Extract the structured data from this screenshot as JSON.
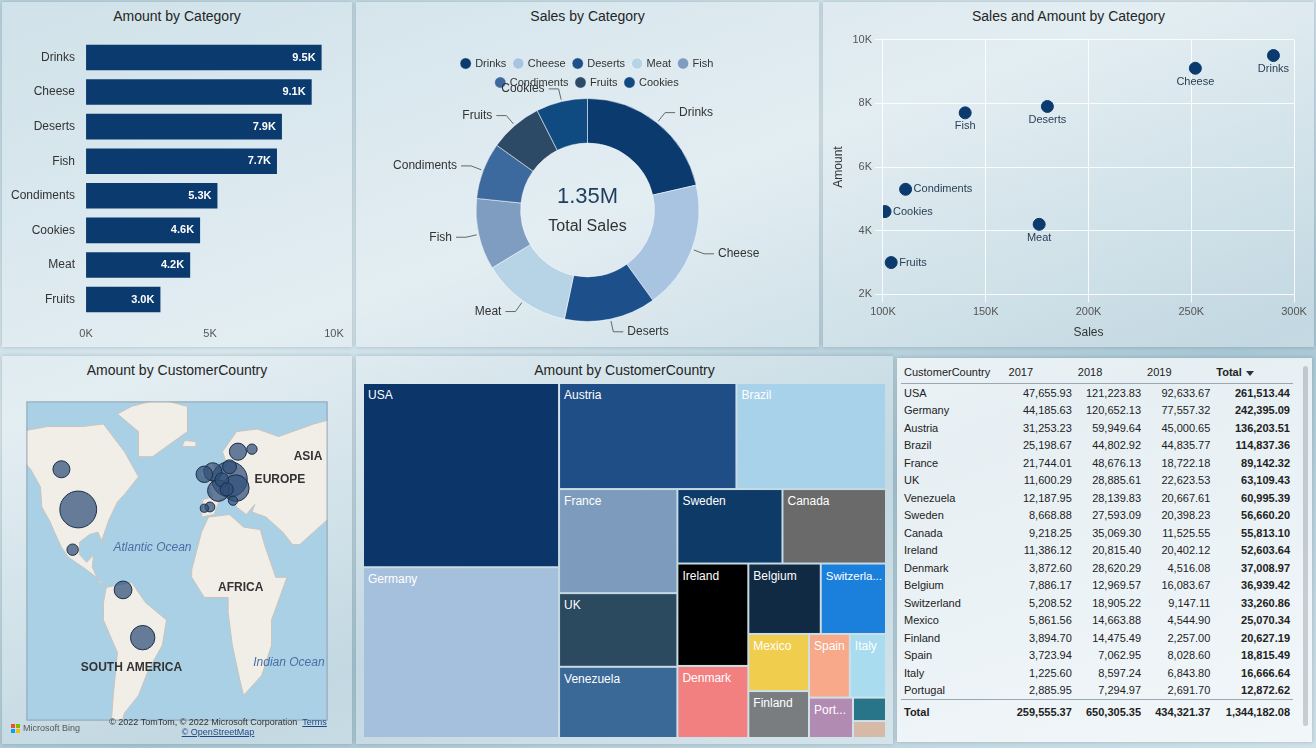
{
  "chart_data": [
    {
      "type": "bar",
      "title": "Amount by Category",
      "orientation": "horizontal",
      "categories": [
        "Drinks",
        "Cheese",
        "Deserts",
        "Fish",
        "Condiments",
        "Cookies",
        "Meat",
        "Fruits"
      ],
      "values": [
        9500,
        9100,
        7900,
        7700,
        5300,
        4600,
        4200,
        3000
      ],
      "value_labels": [
        "9.5K",
        "9.1K",
        "7.9K",
        "7.7K",
        "5.3K",
        "4.6K",
        "4.2K",
        "3.0K"
      ],
      "color": "#0b3a6e",
      "xlim": [
        0,
        10000
      ],
      "xticks": [
        {
          "value": 0,
          "label": "0K"
        },
        {
          "value": 5000,
          "label": "5K"
        },
        {
          "value": 10000,
          "label": "10K"
        }
      ],
      "grid": false,
      "data_labels": true
    },
    {
      "type": "doughnut",
      "title": "Sales by Category",
      "categories": [
        "Drinks",
        "Cheese",
        "Deserts",
        "Meat",
        "Fish",
        "Condiments",
        "Fruits",
        "Cookies"
      ],
      "values": [
        290000,
        252000,
        180000,
        176000,
        140000,
        111000,
        104000,
        101000
      ],
      "colors": [
        "#0b3a6e",
        "#a9c4e0",
        "#1d4f8a",
        "#b7d3e6",
        "#7e9dc0",
        "#3d6a9e",
        "#2c4a66",
        "#0f4a80"
      ],
      "legend": "top",
      "annotations": [
        "1.35M",
        "Total Sales"
      ]
    },
    {
      "type": "scatter",
      "title": "Sales and Amount by Category",
      "x_label": "Sales",
      "y_label": "Amount",
      "categories": [
        "Drinks",
        "Cheese",
        "Deserts",
        "Fish",
        "Condiments",
        "Cookies",
        "Meat",
        "Fruits"
      ],
      "x": [
        290000,
        252000,
        180000,
        140000,
        111000,
        101000,
        176000,
        104000
      ],
      "values": [
        9500,
        9100,
        7900,
        7700,
        5300,
        4600,
        4200,
        3000
      ],
      "color": "#0b3a6e",
      "marker": "circle",
      "xlim": [
        100000,
        300000
      ],
      "xticks": [
        {
          "value": 100000,
          "label": "100K"
        },
        {
          "value": 150000,
          "label": "150K"
        },
        {
          "value": 200000,
          "label": "200K"
        },
        {
          "value": 250000,
          "label": "250K"
        },
        {
          "value": 300000,
          "label": "300K"
        }
      ],
      "ylim": [
        2000,
        10000
      ],
      "yticks": [
        {
          "value": 2000,
          "label": "2K"
        },
        {
          "value": 4000,
          "label": "4K"
        },
        {
          "value": 6000,
          "label": "6K"
        },
        {
          "value": 8000,
          "label": "8K"
        },
        {
          "value": 10000,
          "label": "10K"
        }
      ],
      "grid": true
    },
    {
      "type": "bubble",
      "title": "Amount by CustomerCountry",
      "x": [
        -98,
        10,
        14.5,
        -52,
        2,
        -2,
        -66,
        16,
        -110,
        -8,
        10,
        4.5,
        8,
        -102,
        26,
        -4,
        12.5,
        -8
      ],
      "values": [
        39,
        51,
        47.5,
        -12,
        46.5,
        54,
        7,
        62,
        55,
        53,
        56,
        50.8,
        47,
        23,
        63,
        40,
        42.5,
        39.5
      ],
      "sizes": [
        261513.44,
        242395.09,
        136203.51,
        114837.36,
        89142.32,
        63109.43,
        60995.39,
        56660.2,
        55813.1,
        52603.64,
        37008.97,
        36939.42,
        33260.86,
        25070.34,
        20627.19,
        18815.49,
        16666.64,
        12872.62
      ],
      "color": "#2f4f78",
      "xlim": [
        -135,
        80
      ],
      "ylim": [
        -45,
        82
      ],
      "tick_labels": false,
      "grid": false,
      "annotations": [
        "Atlantic Ocean",
        "EUROPE",
        "AFRICA",
        "SOUTH AMERICA",
        "Indian Ocean",
        "ASIA"
      ],
      "credits": [
        "© 2022 TomTom, © 2022 Microsoft Corporation",
        "Terms",
        "© OpenStreetMap",
        "Microsoft Bing"
      ]
    },
    {
      "type": "treemap",
      "title": "Amount by CustomerCountry",
      "categories": [
        "USA",
        "Germany",
        "Austria",
        "Brazil",
        "France",
        "UK",
        "Venezuela",
        "Sweden",
        "Canada",
        "Ireland",
        "Denmark",
        "Belgium",
        "Switzerla...",
        "Mexico",
        "Finland",
        "Spain",
        "Italy",
        "Port...",
        null,
        null
      ],
      "values": [
        261513.44,
        242395.09,
        136203.51,
        114837.36,
        89142.32,
        63109.43,
        60995.39,
        56660.2,
        55813.1,
        52603.64,
        37008.97,
        36939.42,
        33260.86,
        25070.34,
        20627.19,
        18815.49,
        16666.64,
        12872.62,
        5600,
        4047.07
      ],
      "colors": [
        "#0c3669",
        "#a4c0dc",
        "#1f4e86",
        "#a8d1ea",
        "#7c9bbd",
        "#2b4a5f",
        "#3a6897",
        "#0d3a66",
        "#6a6a6a",
        "#000000",
        "#f38080",
        "#102a43",
        "#1b7fdc",
        "#f0cd4d",
        "#7a7d80",
        "#f7a98a",
        "#a9dcef",
        "#b28bb3",
        "#287589",
        "#d6b9a7"
      ]
    },
    {
      "type": "table",
      "columns": [
        "CustomerCountry",
        "2017",
        "2018",
        "2019",
        "Total"
      ],
      "rows": [
        [
          "USA",
          "47,655.93",
          "121,223.83",
          "92,633.67",
          "261,513.44"
        ],
        [
          "Germany",
          "44,185.63",
          "120,652.13",
          "77,557.32",
          "242,395.09"
        ],
        [
          "Austria",
          "31,253.23",
          "59,949.64",
          "45,000.65",
          "136,203.51"
        ],
        [
          "Brazil",
          "25,198.67",
          "44,802.92",
          "44,835.77",
          "114,837.36"
        ],
        [
          "France",
          "21,744.01",
          "48,676.13",
          "18,722.18",
          "89,142.32"
        ],
        [
          "UK",
          "11,600.29",
          "28,885.61",
          "22,623.53",
          "63,109.43"
        ],
        [
          "Venezuela",
          "12,187.95",
          "28,139.83",
          "20,667.61",
          "60,995.39"
        ],
        [
          "Sweden",
          "8,668.88",
          "27,593.09",
          "20,398.23",
          "56,660.20"
        ],
        [
          "Canada",
          "9,218.25",
          "35,069.30",
          "11,525.55",
          "55,813.10"
        ],
        [
          "Ireland",
          "11,386.12",
          "20,815.40",
          "20,402.12",
          "52,603.64"
        ],
        [
          "Denmark",
          "3,872.60",
          "28,620.29",
          "4,516.08",
          "37,008.97"
        ],
        [
          "Belgium",
          "7,886.17",
          "12,969.57",
          "16,083.67",
          "36,939.42"
        ],
        [
          "Switzerland",
          "5,208.52",
          "18,905.22",
          "9,147.11",
          "33,260.86"
        ],
        [
          "Mexico",
          "5,861.56",
          "14,663.88",
          "4,544.90",
          "25,070.34"
        ],
        [
          "Finland",
          "3,894.70",
          "14,475.49",
          "2,257.00",
          "20,627.19"
        ],
        [
          "Spain",
          "3,723.94",
          "7,062.95",
          "8,028.60",
          "18,815.49"
        ],
        [
          "Italy",
          "1,225.60",
          "8,597.24",
          "6,843.80",
          "16,666.64"
        ],
        [
          "Portugal",
          "2,885.95",
          "7,294.97",
          "2,691.70",
          "12,872.62"
        ]
      ],
      "footer": [
        "Total",
        "259,555.37",
        "650,305.35",
        "434,321.37",
        "1,344,182.08"
      ]
    }
  ]
}
